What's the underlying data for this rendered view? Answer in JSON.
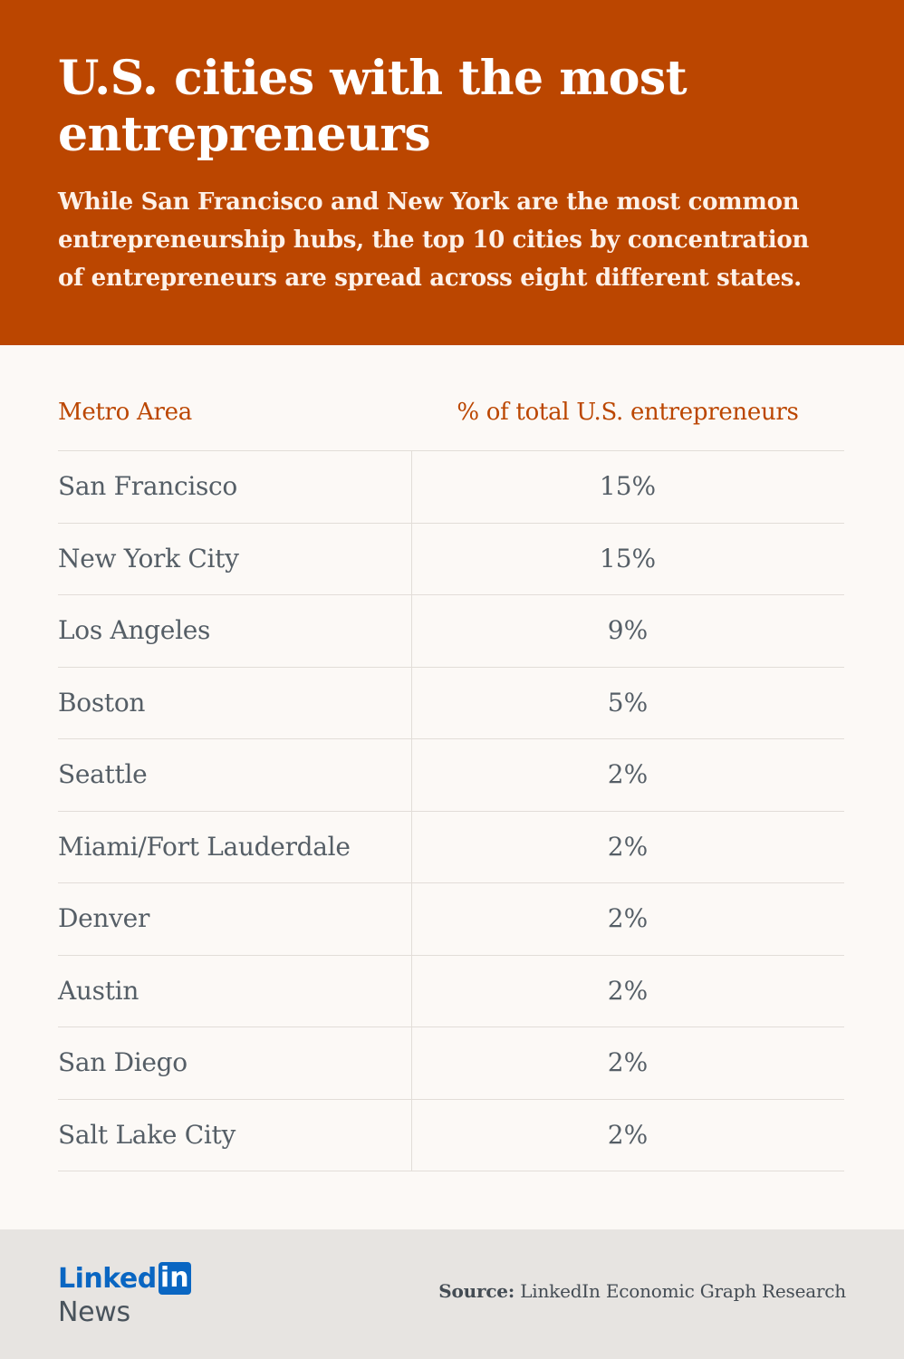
{
  "header": {
    "title": "U.S. cities with the most entrepreneurs",
    "subtitle": "While San Francisco and New York are the most common entrepreneurship hubs, the top 10 cities by concentration of entrepreneurs are spread across eight different states."
  },
  "chart_data": {
    "type": "table",
    "title": "U.S. cities with the most entrepreneurs",
    "columns": [
      "Metro Area",
      "% of total U.S. entrepreneurs"
    ],
    "rows": [
      {
        "city": "San Francisco",
        "value": "15%"
      },
      {
        "city": "New York City",
        "value": "15%"
      },
      {
        "city": "Los Angeles",
        "value": "9%"
      },
      {
        "city": "Boston",
        "value": "5%"
      },
      {
        "city": "Seattle",
        "value": "2%"
      },
      {
        "city": "Miami/Fort Lauderdale",
        "value": "2%"
      },
      {
        "city": "Denver",
        "value": "2%"
      },
      {
        "city": "Austin",
        "value": "2%"
      },
      {
        "city": "San Diego",
        "value": "2%"
      },
      {
        "city": "Salt Lake City",
        "value": "2%"
      }
    ]
  },
  "footer": {
    "logo_word": "Linked",
    "logo_box": "in",
    "logo_news": "News",
    "source_label": "Source:",
    "source_text": "LinkedIn Economic Graph Research"
  },
  "colors": {
    "header_bg": "#bb4600",
    "accent": "#bb4600",
    "body_text": "#555e66",
    "footer_bg": "#e7e4e1",
    "linkedin_blue": "#0a66c2"
  }
}
